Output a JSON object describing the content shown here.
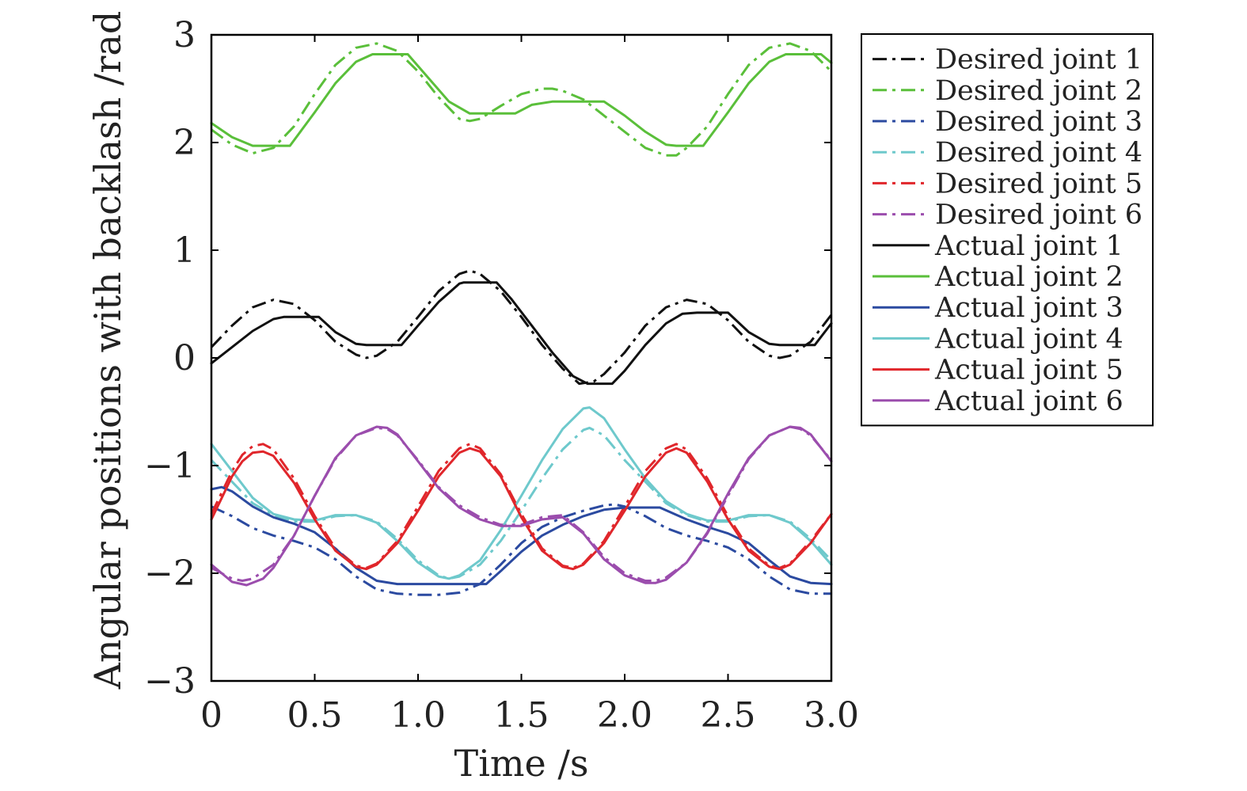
{
  "chart_data": {
    "type": "line",
    "title": "",
    "xlabel": "Time /s",
    "ylabel": "Angular positions with backlash /rad",
    "xlim": [
      0,
      3
    ],
    "ylim": [
      -3,
      3
    ],
    "xticks": [
      0,
      0.5,
      1,
      1.5,
      2,
      2.5,
      3
    ],
    "xtick_labels": [
      "0",
      "0.5",
      "1.0",
      "1.5",
      "2.0",
      "2.5",
      "3.0"
    ],
    "yticks": [
      -3,
      -2,
      -1,
      0,
      1,
      2,
      3
    ],
    "ytick_labels": [
      "−3",
      "−2",
      "−1",
      "0",
      "1",
      "2",
      "3"
    ],
    "grid": false,
    "legend_position": "outside-right",
    "colors": {
      "joint1": "#111111",
      "joint2": "#5abf3a",
      "joint3": "#2b4aa0",
      "joint4": "#6ec9cc",
      "joint5": "#e0262b",
      "joint6": "#9b4dad"
    },
    "series": [
      {
        "name": "Desired joint 1",
        "color": "#111111",
        "style": "dashdot",
        "x": [
          0,
          0.1,
          0.2,
          0.3,
          0.4,
          0.5,
          0.6,
          0.7,
          0.75,
          0.8,
          0.9,
          1.0,
          1.1,
          1.2,
          1.25,
          1.3,
          1.4,
          1.5,
          1.6,
          1.7,
          1.78,
          1.85,
          1.9,
          2.0,
          2.1,
          2.2,
          2.3,
          2.4,
          2.5,
          2.6,
          2.7,
          2.75,
          2.8,
          2.9,
          3.0
        ],
        "y": [
          0.1,
          0.3,
          0.47,
          0.54,
          0.5,
          0.35,
          0.15,
          0.03,
          0.0,
          0.02,
          0.15,
          0.38,
          0.62,
          0.78,
          0.81,
          0.78,
          0.62,
          0.38,
          0.12,
          -0.1,
          -0.24,
          -0.22,
          -0.15,
          0.05,
          0.3,
          0.47,
          0.54,
          0.5,
          0.35,
          0.15,
          0.02,
          0.0,
          0.02,
          0.15,
          0.4
        ]
      },
      {
        "name": "Desired joint 2",
        "color": "#5abf3a",
        "style": "dashdot",
        "x": [
          0,
          0.1,
          0.2,
          0.3,
          0.4,
          0.5,
          0.6,
          0.7,
          0.8,
          0.9,
          1.0,
          1.1,
          1.2,
          1.25,
          1.3,
          1.4,
          1.5,
          1.6,
          1.65,
          1.7,
          1.8,
          1.9,
          2.0,
          2.1,
          2.2,
          2.25,
          2.3,
          2.4,
          2.5,
          2.6,
          2.7,
          2.8,
          2.9,
          3.0
        ],
        "y": [
          2.12,
          1.98,
          1.9,
          1.95,
          2.15,
          2.45,
          2.72,
          2.88,
          2.92,
          2.85,
          2.66,
          2.42,
          2.22,
          2.2,
          2.22,
          2.34,
          2.45,
          2.5,
          2.5,
          2.48,
          2.4,
          2.25,
          2.1,
          1.95,
          1.88,
          1.88,
          1.95,
          2.15,
          2.45,
          2.72,
          2.88,
          2.92,
          2.85,
          2.66
        ]
      },
      {
        "name": "Desired joint 3",
        "color": "#2b4aa0",
        "style": "dashdot",
        "x": [
          0,
          0.1,
          0.2,
          0.3,
          0.4,
          0.5,
          0.6,
          0.7,
          0.8,
          0.9,
          1.0,
          1.1,
          1.2,
          1.3,
          1.4,
          1.5,
          1.6,
          1.7,
          1.8,
          1.9,
          1.95,
          2.0,
          2.1,
          2.2,
          2.3,
          2.4,
          2.5,
          2.6,
          2.7,
          2.8,
          2.9,
          3.0
        ],
        "y": [
          -1.38,
          -1.47,
          -1.58,
          -1.65,
          -1.7,
          -1.76,
          -1.87,
          -2.03,
          -2.15,
          -2.19,
          -2.2,
          -2.2,
          -2.18,
          -2.1,
          -1.92,
          -1.72,
          -1.57,
          -1.48,
          -1.42,
          -1.37,
          -1.36,
          -1.38,
          -1.47,
          -1.58,
          -1.65,
          -1.7,
          -1.76,
          -1.87,
          -2.03,
          -2.15,
          -2.19,
          -2.19
        ]
      },
      {
        "name": "Desired joint 4",
        "color": "#6ec9cc",
        "style": "dashdot",
        "x": [
          0,
          0.1,
          0.2,
          0.3,
          0.4,
          0.5,
          0.6,
          0.7,
          0.8,
          0.9,
          1.0,
          1.1,
          1.15,
          1.2,
          1.3,
          1.4,
          1.5,
          1.6,
          1.7,
          1.8,
          1.83,
          1.9,
          2.0,
          2.1,
          2.2,
          2.3,
          2.4,
          2.5,
          2.6,
          2.7,
          2.8,
          2.9,
          3.0
        ],
        "y": [
          -0.95,
          -1.15,
          -1.35,
          -1.46,
          -1.52,
          -1.52,
          -1.47,
          -1.46,
          -1.52,
          -1.68,
          -1.88,
          -2.02,
          -2.05,
          -2.03,
          -1.92,
          -1.7,
          -1.42,
          -1.12,
          -0.85,
          -0.67,
          -0.65,
          -0.72,
          -0.95,
          -1.15,
          -1.35,
          -1.46,
          -1.52,
          -1.52,
          -1.47,
          -1.46,
          -1.52,
          -1.68,
          -1.88
        ]
      },
      {
        "name": "Desired joint 5",
        "color": "#e0262b",
        "style": "dashdot",
        "x": [
          0,
          0.05,
          0.1,
          0.15,
          0.2,
          0.25,
          0.3,
          0.4,
          0.5,
          0.6,
          0.7,
          0.75,
          0.8,
          0.9,
          1.0,
          1.1,
          1.2,
          1.25,
          1.3,
          1.4,
          1.5,
          1.6,
          1.7,
          1.75,
          1.8,
          1.9,
          2.0,
          2.1,
          2.2,
          2.25,
          2.3,
          2.4,
          2.5,
          2.6,
          2.7,
          2.75,
          2.8,
          2.9,
          3.0
        ],
        "y": [
          -1.45,
          -1.25,
          -1.05,
          -0.9,
          -0.82,
          -0.8,
          -0.85,
          -1.12,
          -1.47,
          -1.77,
          -1.93,
          -1.95,
          -1.91,
          -1.7,
          -1.38,
          -1.05,
          -0.84,
          -0.8,
          -0.84,
          -1.08,
          -1.45,
          -1.77,
          -1.93,
          -1.95,
          -1.91,
          -1.7,
          -1.38,
          -1.05,
          -0.84,
          -0.8,
          -0.85,
          -1.12,
          -1.47,
          -1.77,
          -1.93,
          -1.95,
          -1.91,
          -1.7,
          -1.45
        ]
      },
      {
        "name": "Desired joint 6",
        "color": "#9b4dad",
        "style": "dashdot",
        "x": [
          0,
          0.1,
          0.15,
          0.2,
          0.3,
          0.4,
          0.5,
          0.6,
          0.7,
          0.8,
          0.85,
          0.9,
          1.0,
          1.1,
          1.2,
          1.3,
          1.4,
          1.5,
          1.6,
          1.7,
          1.8,
          1.9,
          2.0,
          2.1,
          2.15,
          2.2,
          2.3,
          2.4,
          2.5,
          2.6,
          2.7,
          2.8,
          2.85,
          2.9,
          3.0
        ],
        "y": [
          -1.95,
          -2.05,
          -2.07,
          -2.05,
          -1.92,
          -1.65,
          -1.28,
          -0.94,
          -0.72,
          -0.65,
          -0.66,
          -0.72,
          -0.95,
          -1.2,
          -1.37,
          -1.48,
          -1.55,
          -1.55,
          -1.48,
          -1.46,
          -1.62,
          -1.85,
          -2.0,
          -2.07,
          -2.07,
          -2.04,
          -1.9,
          -1.63,
          -1.28,
          -0.94,
          -0.72,
          -0.64,
          -0.66,
          -0.72,
          -0.95
        ]
      },
      {
        "name": "Actual joint 1",
        "color": "#111111",
        "style": "solid",
        "x": [
          0,
          0.1,
          0.2,
          0.3,
          0.35,
          0.52,
          0.6,
          0.7,
          0.75,
          0.92,
          1.0,
          1.1,
          1.2,
          1.22,
          1.38,
          1.45,
          1.55,
          1.65,
          1.75,
          1.82,
          1.94,
          2.0,
          2.1,
          2.2,
          2.28,
          2.35,
          2.5,
          2.6,
          2.7,
          2.75,
          2.92,
          3.0
        ],
        "y": [
          -0.05,
          0.1,
          0.25,
          0.36,
          0.38,
          0.38,
          0.24,
          0.13,
          0.12,
          0.12,
          0.3,
          0.52,
          0.69,
          0.7,
          0.7,
          0.55,
          0.3,
          0.05,
          -0.17,
          -0.24,
          -0.24,
          -0.12,
          0.12,
          0.32,
          0.41,
          0.42,
          0.42,
          0.24,
          0.13,
          0.12,
          0.12,
          0.32
        ]
      },
      {
        "name": "Actual joint 2",
        "color": "#5abf3a",
        "style": "solid",
        "x": [
          0,
          0.1,
          0.2,
          0.38,
          0.5,
          0.6,
          0.7,
          0.78,
          0.95,
          1.05,
          1.15,
          1.25,
          1.47,
          1.55,
          1.65,
          1.9,
          2.0,
          2.1,
          2.2,
          2.25,
          2.38,
          2.5,
          2.6,
          2.7,
          2.78,
          2.95,
          3.0
        ],
        "y": [
          2.18,
          2.05,
          1.97,
          1.97,
          2.28,
          2.55,
          2.75,
          2.82,
          2.82,
          2.6,
          2.38,
          2.27,
          2.27,
          2.35,
          2.38,
          2.38,
          2.25,
          2.1,
          1.98,
          1.97,
          1.97,
          2.28,
          2.55,
          2.75,
          2.82,
          2.82,
          2.74
        ]
      },
      {
        "name": "Actual joint 3",
        "color": "#2b4aa0",
        "style": "solid",
        "x": [
          0,
          0.05,
          0.1,
          0.2,
          0.3,
          0.4,
          0.5,
          0.6,
          0.7,
          0.8,
          0.9,
          1.0,
          1.1,
          1.2,
          1.33,
          1.4,
          1.5,
          1.6,
          1.7,
          1.8,
          1.9,
          2.0,
          2.17,
          2.3,
          2.4,
          2.5,
          2.6,
          2.7,
          2.8,
          2.9,
          3.0
        ],
        "y": [
          -1.22,
          -1.2,
          -1.24,
          -1.38,
          -1.48,
          -1.54,
          -1.62,
          -1.77,
          -1.95,
          -2.07,
          -2.1,
          -2.1,
          -2.1,
          -2.1,
          -2.1,
          -1.98,
          -1.8,
          -1.65,
          -1.55,
          -1.47,
          -1.41,
          -1.39,
          -1.39,
          -1.5,
          -1.57,
          -1.63,
          -1.72,
          -1.88,
          -2.03,
          -2.09,
          -2.1
        ]
      },
      {
        "name": "Actual joint 4",
        "color": "#6ec9cc",
        "style": "solid",
        "x": [
          0,
          0.1,
          0.2,
          0.3,
          0.4,
          0.5,
          0.6,
          0.7,
          0.8,
          0.9,
          1.0,
          1.1,
          1.15,
          1.2,
          1.3,
          1.4,
          1.5,
          1.6,
          1.7,
          1.8,
          1.83,
          1.9,
          2.0,
          2.1,
          2.2,
          2.3,
          2.4,
          2.5,
          2.6,
          2.7,
          2.8,
          2.9,
          3.0
        ],
        "y": [
          -0.8,
          -1.05,
          -1.3,
          -1.45,
          -1.5,
          -1.51,
          -1.46,
          -1.46,
          -1.53,
          -1.7,
          -1.9,
          -2.03,
          -2.05,
          -2.02,
          -1.88,
          -1.6,
          -1.28,
          -0.95,
          -0.66,
          -0.47,
          -0.46,
          -0.56,
          -0.85,
          -1.12,
          -1.33,
          -1.45,
          -1.51,
          -1.51,
          -1.46,
          -1.46,
          -1.53,
          -1.7,
          -1.92
        ]
      },
      {
        "name": "Actual joint 5",
        "color": "#e0262b",
        "style": "solid",
        "x": [
          0,
          0.05,
          0.1,
          0.15,
          0.2,
          0.25,
          0.3,
          0.4,
          0.5,
          0.6,
          0.7,
          0.75,
          0.8,
          0.9,
          1.0,
          1.1,
          1.2,
          1.25,
          1.3,
          1.4,
          1.5,
          1.6,
          1.7,
          1.75,
          1.8,
          1.9,
          2.0,
          2.1,
          2.2,
          2.25,
          2.3,
          2.4,
          2.5,
          2.6,
          2.7,
          2.75,
          2.8,
          2.9,
          3.0
        ],
        "y": [
          -1.5,
          -1.3,
          -1.1,
          -0.96,
          -0.88,
          -0.87,
          -0.91,
          -1.16,
          -1.5,
          -1.79,
          -1.94,
          -1.96,
          -1.92,
          -1.72,
          -1.42,
          -1.1,
          -0.88,
          -0.84,
          -0.87,
          -1.1,
          -1.48,
          -1.79,
          -1.94,
          -1.96,
          -1.92,
          -1.72,
          -1.42,
          -1.1,
          -0.88,
          -0.84,
          -0.88,
          -1.15,
          -1.5,
          -1.79,
          -1.94,
          -1.96,
          -1.92,
          -1.72,
          -1.45
        ]
      },
      {
        "name": "Actual joint 6",
        "color": "#9b4dad",
        "style": "solid",
        "x": [
          0,
          0.1,
          0.17,
          0.25,
          0.3,
          0.4,
          0.5,
          0.6,
          0.7,
          0.8,
          0.85,
          0.9,
          1.0,
          1.1,
          1.2,
          1.3,
          1.4,
          1.5,
          1.6,
          1.7,
          1.8,
          1.9,
          2.0,
          2.1,
          2.15,
          2.2,
          2.3,
          2.4,
          2.5,
          2.6,
          2.7,
          2.8,
          2.85,
          2.9,
          3.0
        ],
        "y": [
          -1.92,
          -2.08,
          -2.11,
          -2.05,
          -1.95,
          -1.65,
          -1.28,
          -0.93,
          -0.72,
          -0.64,
          -0.65,
          -0.71,
          -0.96,
          -1.21,
          -1.39,
          -1.5,
          -1.56,
          -1.56,
          -1.5,
          -1.48,
          -1.63,
          -1.87,
          -2.02,
          -2.09,
          -2.09,
          -2.06,
          -1.9,
          -1.62,
          -1.26,
          -0.93,
          -0.72,
          -0.64,
          -0.65,
          -0.71,
          -0.96
        ]
      }
    ]
  }
}
